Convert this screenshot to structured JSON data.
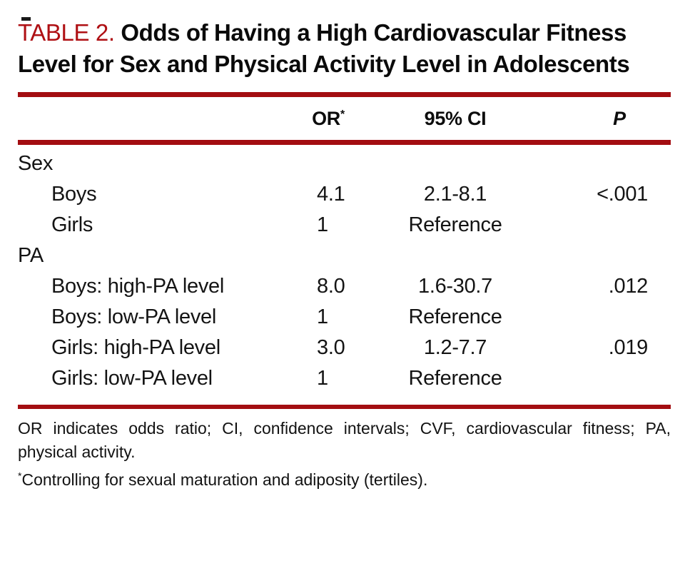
{
  "colors": {
    "rule_red": "#a30d11",
    "label_red": "#af1014"
  },
  "title": {
    "label": "TABLE 2.",
    "text": "Odds of Having a High Cardiovascular Fitness Level for Sex and Physical Activity Level in Adolescents"
  },
  "table": {
    "header": {
      "or": "OR",
      "or_marker": "*",
      "ci": "95% CI",
      "p": "P"
    },
    "rows": [
      {
        "type": "group",
        "label": "Sex"
      },
      {
        "type": "data",
        "label": "Boys",
        "or": "4.1",
        "ci": "2.1-8.1",
        "p": "<.001"
      },
      {
        "type": "data",
        "label": "Girls",
        "or": "1",
        "ci": "Reference",
        "p": ""
      },
      {
        "type": "group",
        "label": "PA"
      },
      {
        "type": "data",
        "label": "Boys: high-PA level",
        "or": "8.0",
        "ci": "1.6-30.7",
        "p": ".012"
      },
      {
        "type": "data",
        "label": "Boys: low-PA level",
        "or": "1",
        "ci": "Reference",
        "p": ""
      },
      {
        "type": "data",
        "label": "Girls: high-PA level",
        "or": "3.0",
        "ci": "1.2-7.7",
        "p": ".019"
      },
      {
        "type": "data",
        "label": "Girls: low-PA level",
        "or": "1",
        "ci": "Reference",
        "p": ""
      }
    ]
  },
  "footnotes": {
    "abbreviations": "OR indicates odds ratio; CI, confidence intervals; CVF, cardiovascular fitness; PA, physical activity.",
    "asterisk_marker": "*",
    "asterisk_text": "Controlling for sexual maturation and adiposity (tertiles)."
  }
}
